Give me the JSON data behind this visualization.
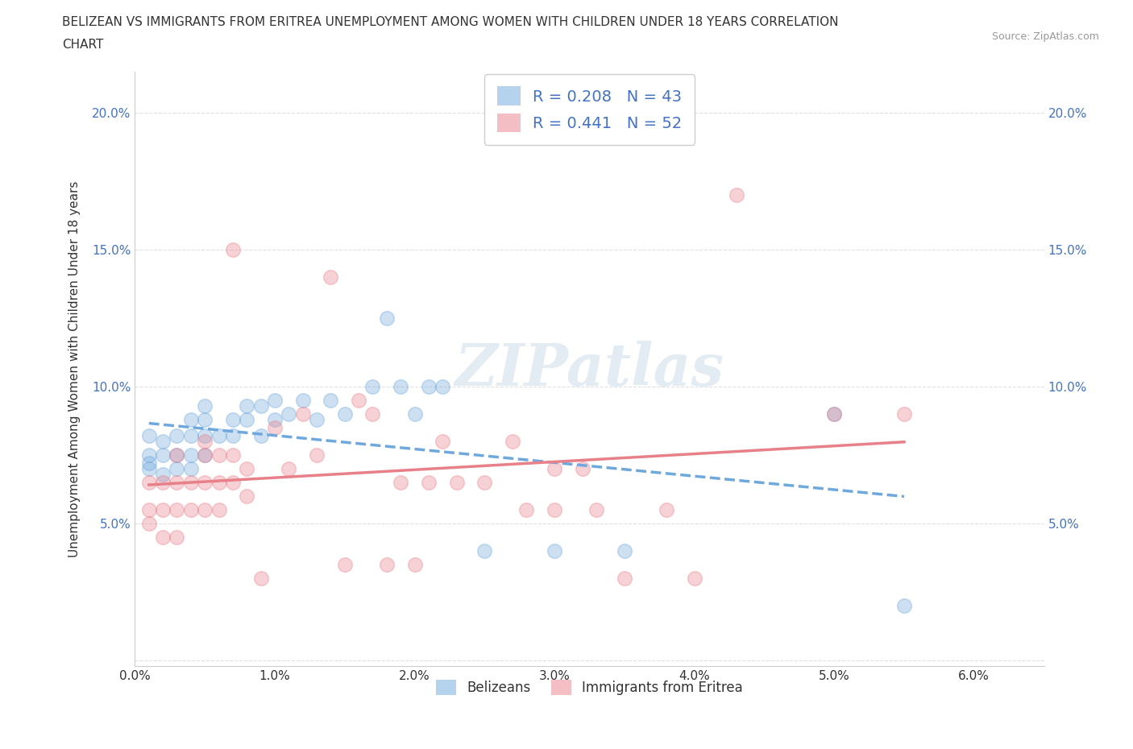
{
  "title_line1": "BELIZEAN VS IMMIGRANTS FROM ERITREA UNEMPLOYMENT AMONG WOMEN WITH CHILDREN UNDER 18 YEARS CORRELATION",
  "title_line2": "CHART",
  "source": "Source: ZipAtlas.com",
  "ylabel": "Unemployment Among Women with Children Under 18 years",
  "xlim": [
    0.0,
    0.065
  ],
  "ylim": [
    -0.002,
    0.215
  ],
  "xtick_vals": [
    0.0,
    0.01,
    0.02,
    0.03,
    0.04,
    0.05,
    0.06
  ],
  "xtick_labels": [
    "0.0%",
    "1.0%",
    "2.0%",
    "3.0%",
    "4.0%",
    "5.0%",
    "6.0%"
  ],
  "ytick_vals": [
    0.0,
    0.05,
    0.1,
    0.15,
    0.2
  ],
  "ytick_labels": [
    "",
    "5.0%",
    "10.0%",
    "15.0%",
    "20.0%"
  ],
  "belizean_color": "#6fa8dc",
  "eritrea_color": "#e8808a",
  "R_belizean": 0.208,
  "N_belizean": 43,
  "R_eritrea": 0.441,
  "N_eritrea": 52,
  "belizean_x": [
    0.001,
    0.001,
    0.001,
    0.001,
    0.002,
    0.002,
    0.002,
    0.003,
    0.003,
    0.003,
    0.004,
    0.004,
    0.004,
    0.004,
    0.005,
    0.005,
    0.005,
    0.005,
    0.006,
    0.007,
    0.007,
    0.008,
    0.008,
    0.009,
    0.009,
    0.01,
    0.01,
    0.011,
    0.012,
    0.013,
    0.014,
    0.015,
    0.017,
    0.018,
    0.019,
    0.02,
    0.021,
    0.022,
    0.025,
    0.03,
    0.035,
    0.05,
    0.055
  ],
  "belizean_y": [
    0.07,
    0.075,
    0.082,
    0.072,
    0.068,
    0.075,
    0.08,
    0.07,
    0.075,
    0.082,
    0.07,
    0.075,
    0.082,
    0.088,
    0.075,
    0.082,
    0.088,
    0.093,
    0.082,
    0.082,
    0.088,
    0.088,
    0.093,
    0.082,
    0.093,
    0.088,
    0.095,
    0.09,
    0.095,
    0.088,
    0.095,
    0.09,
    0.1,
    0.125,
    0.1,
    0.09,
    0.1,
    0.1,
    0.04,
    0.04,
    0.04,
    0.09,
    0.02
  ],
  "eritrea_x": [
    0.001,
    0.001,
    0.001,
    0.002,
    0.002,
    0.002,
    0.003,
    0.003,
    0.003,
    0.003,
    0.004,
    0.004,
    0.005,
    0.005,
    0.005,
    0.005,
    0.006,
    0.006,
    0.006,
    0.007,
    0.007,
    0.007,
    0.008,
    0.008,
    0.009,
    0.01,
    0.011,
    0.012,
    0.013,
    0.014,
    0.015,
    0.016,
    0.017,
    0.018,
    0.019,
    0.02,
    0.021,
    0.022,
    0.023,
    0.025,
    0.027,
    0.028,
    0.03,
    0.03,
    0.032,
    0.033,
    0.035,
    0.038,
    0.04,
    0.043,
    0.05,
    0.055
  ],
  "eritrea_y": [
    0.055,
    0.065,
    0.05,
    0.045,
    0.055,
    0.065,
    0.045,
    0.055,
    0.065,
    0.075,
    0.055,
    0.065,
    0.055,
    0.065,
    0.075,
    0.08,
    0.055,
    0.065,
    0.075,
    0.065,
    0.15,
    0.075,
    0.06,
    0.07,
    0.03,
    0.085,
    0.07,
    0.09,
    0.075,
    0.14,
    0.035,
    0.095,
    0.09,
    0.035,
    0.065,
    0.035,
    0.065,
    0.08,
    0.065,
    0.065,
    0.08,
    0.055,
    0.07,
    0.055,
    0.07,
    0.055,
    0.03,
    0.055,
    0.03,
    0.17,
    0.09,
    0.09
  ],
  "legend_labels": [
    "Belizeans",
    "Immigrants from Eritrea"
  ],
  "watermark": "ZIPatlas",
  "background_color": "#ffffff",
  "grid_color": "#e0e0e0",
  "tick_color": "#4472c4",
  "label_color": "#333333"
}
